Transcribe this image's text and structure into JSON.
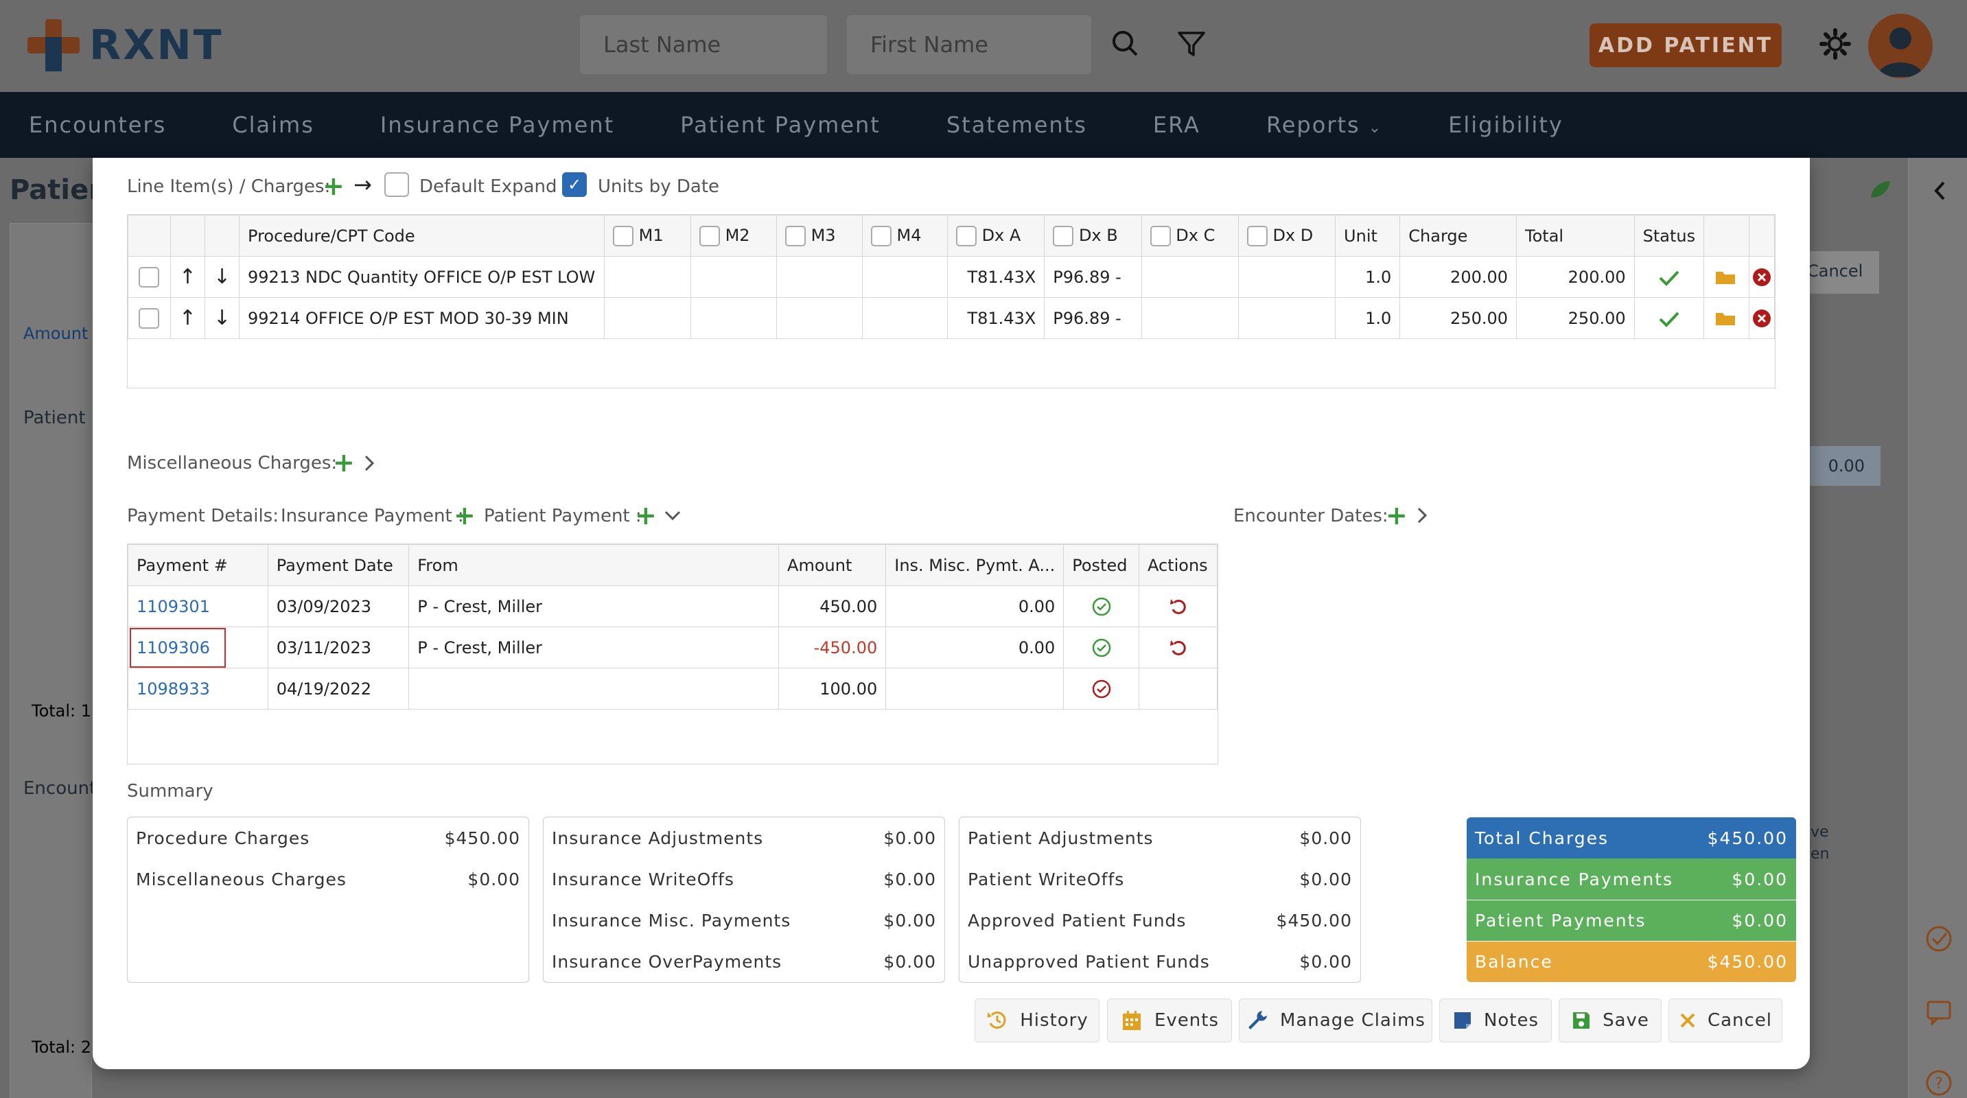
{
  "app": {
    "logo_text": "RXNT"
  },
  "header": {
    "last_name_placeholder": "Last Name",
    "first_name_placeholder": "First Name",
    "add_patient_label": "ADD PATIENT"
  },
  "nav": {
    "items": [
      "Encounters",
      "Claims",
      "Insurance Payment",
      "Patient Payment",
      "Statements",
      "ERA",
      "Reports",
      "Eligibility"
    ]
  },
  "background": {
    "patient_title": "Patien",
    "amount_label": "Amount",
    "patient_label": "Patient",
    "total_1": "Total: 1",
    "encounter_label": "Encount",
    "total_2": "Total: 2",
    "cancel_label": "Cancel",
    "value": "0.00",
    "ve_label": "ve",
    "en_label": "en"
  },
  "line_items": {
    "title": "Line Item(s) / Charges:",
    "default_expand_label": "Default Expand",
    "units_by_date_label": "Units by Date",
    "columns": [
      "Procedure/CPT Code",
      "M1",
      "M2",
      "M3",
      "M4",
      "Dx A",
      "Dx B",
      "Dx C",
      "Dx D",
      "Unit",
      "Charge",
      "Total",
      "Status"
    ],
    "rows": [
      {
        "code": "99213 NDC Quantity OFFICE O/P EST LOW",
        "dx_a": "T81.43X",
        "dx_b": "P96.89 -",
        "unit": "1.0",
        "charge": "200.00",
        "total": "200.00"
      },
      {
        "code": "99214 OFFICE O/P EST MOD 30-39 MIN",
        "dx_a": "T81.43X",
        "dx_b": "P96.89 -",
        "unit": "1.0",
        "charge": "250.00",
        "total": "250.00"
      }
    ]
  },
  "misc": {
    "title": "Miscellaneous Charges:"
  },
  "payments": {
    "title": "Payment Details:",
    "insurance_payment_label": "Insurance Payment :",
    "patient_payment_label": "Patient Payment :",
    "encounter_dates_label": "Encounter Dates:",
    "columns": [
      "Payment #",
      "Payment Date",
      "From",
      "Amount",
      "Ins. Misc. Pymt. A...",
      "Posted",
      "Actions"
    ],
    "rows": [
      {
        "number": "1109301",
        "date": "03/09/2023",
        "from": "P - Crest, Miller",
        "amount": "450.00",
        "ins_misc": "0.00"
      },
      {
        "number": "1109306",
        "date": "03/11/2023",
        "from": "P - Crest, Miller",
        "amount": "-450.00",
        "ins_misc": "0.00"
      },
      {
        "number": "1098933",
        "date": "04/19/2022",
        "from": "",
        "amount": "100.00",
        "ins_misc": ""
      }
    ]
  },
  "summary": {
    "title": "Summary",
    "box1": [
      {
        "label": "Procedure Charges",
        "value": "$450.00"
      },
      {
        "label": "Miscellaneous Charges",
        "value": "$0.00"
      }
    ],
    "box2": [
      {
        "label": "Insurance Adjustments",
        "value": "$0.00"
      },
      {
        "label": "Insurance WriteOffs",
        "value": "$0.00"
      },
      {
        "label": "Insurance Misc. Payments",
        "value": "$0.00"
      },
      {
        "label": "Insurance OverPayments",
        "value": "$0.00"
      }
    ],
    "box3": [
      {
        "label": "Patient Adjustments",
        "value": "$0.00"
      },
      {
        "label": "Patient WriteOffs",
        "value": "$0.00"
      },
      {
        "label": "Approved Patient Funds",
        "value": "$450.00"
      },
      {
        "label": "Unapproved Patient Funds",
        "value": "$0.00"
      }
    ],
    "totals": [
      {
        "label": "Total Charges",
        "value": "$450.00",
        "color": "#2e6fb4"
      },
      {
        "label": "Insurance Payments",
        "value": "$0.00",
        "color": "#5cb05c"
      },
      {
        "label": "Patient Payments",
        "value": "$0.00",
        "color": "#5cb05c"
      },
      {
        "label": "Balance",
        "value": "$450.00",
        "color": "#e8a93a"
      }
    ]
  },
  "buttons": {
    "history": "History",
    "events": "Events",
    "manage_claims": "Manage Claims",
    "notes": "Notes",
    "save": "Save",
    "cancel": "Cancel"
  },
  "colors": {
    "accent": "#2a6ab5",
    "brand": "#7a3d1c",
    "success": "#3a9a3a",
    "danger": "#c0392b",
    "nav": "#0e1824"
  }
}
